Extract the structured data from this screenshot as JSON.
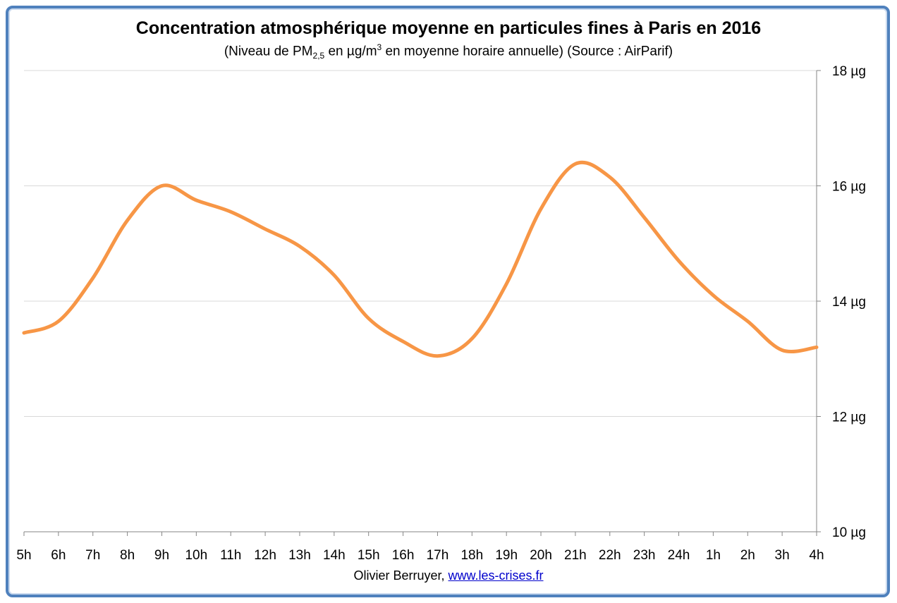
{
  "chart_data": {
    "type": "line",
    "title": "Concentration atmosphérique moyenne en particules fines à Paris  en 2016",
    "subtitle": {
      "pre": "(Niveau de PM",
      "sub": "2,5",
      "mid": " en µg/m",
      "sup": "3",
      "post": " en moyenne horaire annuelle) (Source : AirParif)"
    },
    "categories": [
      "5h",
      "6h",
      "7h",
      "8h",
      "9h",
      "10h",
      "11h",
      "12h",
      "13h",
      "14h",
      "15h",
      "16h",
      "17h",
      "18h",
      "19h",
      "20h",
      "21h",
      "22h",
      "23h",
      "24h",
      "1h",
      "2h",
      "3h",
      "4h"
    ],
    "series": [
      {
        "values": [
          13.45,
          13.65,
          14.4,
          15.4,
          16.0,
          15.75,
          15.55,
          15.25,
          14.95,
          14.45,
          13.7,
          13.3,
          13.05,
          13.35,
          14.3,
          15.6,
          16.38,
          16.15,
          15.45,
          14.7,
          14.1,
          13.65,
          13.15,
          13.2
        ],
        "color": "#f79646"
      }
    ],
    "y_axis": {
      "position": "right",
      "ylim": [
        10,
        18
      ],
      "ticks": [
        10,
        12,
        14,
        16,
        18
      ],
      "tick_suffix": " µg"
    },
    "grid": true,
    "legend": "none"
  },
  "credit": {
    "author": "Olivier Berruyer, ",
    "link": "www.les-crises.fr"
  },
  "colors": {
    "frame": "#4f81bd",
    "line": "#f79646",
    "grid": "#d9d9d9"
  }
}
